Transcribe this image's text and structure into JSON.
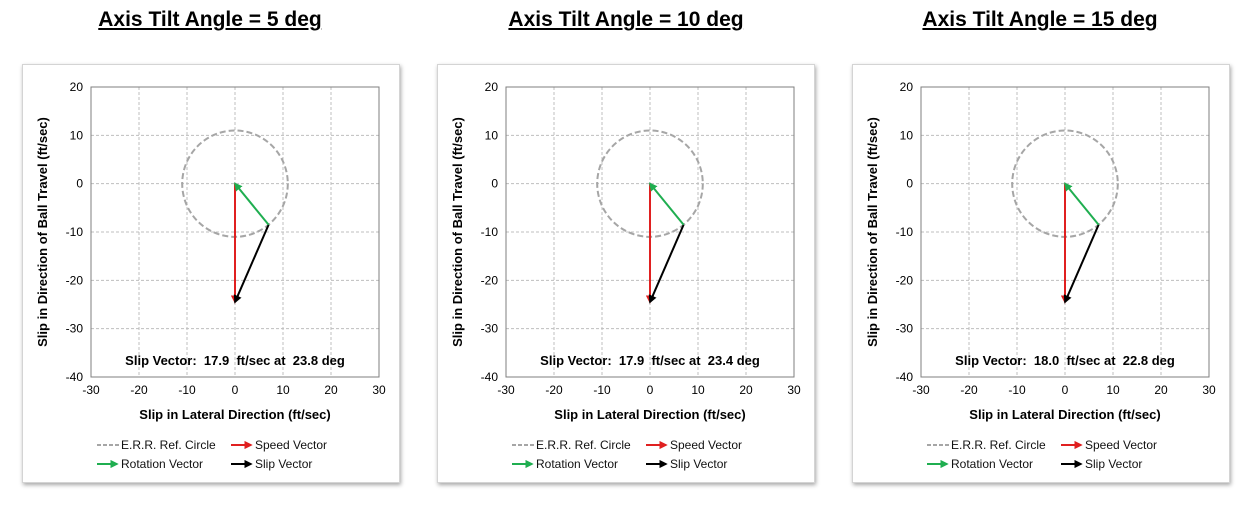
{
  "chart_data": [
    {
      "type": "vector",
      "title": "Axis Tilt Angle = 5 deg",
      "xlabel": "Slip in Lateral Direction (ft/sec)",
      "ylabel": "Slip in Direction of Ball Travel (ft/sec)",
      "xlim": [
        -30,
        30
      ],
      "ylim": [
        -40,
        20
      ],
      "xticks": [
        -30,
        -20,
        -10,
        0,
        10,
        20,
        30
      ],
      "yticks": [
        20,
        10,
        0,
        -10,
        -20,
        -30,
        -40
      ],
      "grid": true,
      "annotation": "Slip Vector:  17.9  ft/sec at  23.8 deg",
      "circle": {
        "center": [
          0,
          0
        ],
        "radius": 11
      },
      "vectors": {
        "speed": {
          "from": [
            0,
            0
          ],
          "to": [
            0,
            -24.5
          ]
        },
        "rotation": {
          "from": [
            7,
            -8.5
          ],
          "to": [
            0,
            0
          ]
        },
        "slip": {
          "from": [
            7,
            -8.5
          ],
          "to": [
            0,
            -24.5
          ]
        }
      },
      "legend": [
        "E.R.R. Ref. Circle",
        "Speed Vector",
        "Rotation Vector",
        "Slip Vector"
      ]
    },
    {
      "type": "vector",
      "title": "Axis Tilt Angle = 10 deg",
      "xlabel": "Slip in Lateral Direction (ft/sec)",
      "ylabel": "Slip in Direction of Ball Travel (ft/sec)",
      "xlim": [
        -30,
        30
      ],
      "ylim": [
        -40,
        20
      ],
      "xticks": [
        -30,
        -20,
        -10,
        0,
        10,
        20,
        30
      ],
      "yticks": [
        20,
        10,
        0,
        -10,
        -20,
        -30,
        -40
      ],
      "grid": true,
      "annotation": "Slip Vector:  17.9  ft/sec at  23.4 deg",
      "circle": {
        "center": [
          0,
          0
        ],
        "radius": 11
      },
      "vectors": {
        "speed": {
          "from": [
            0,
            0
          ],
          "to": [
            0,
            -24.5
          ]
        },
        "rotation": {
          "from": [
            7,
            -8.5
          ],
          "to": [
            0,
            0
          ]
        },
        "slip": {
          "from": [
            7,
            -8.5
          ],
          "to": [
            0,
            -24.5
          ]
        }
      },
      "legend": [
        "E.R.R. Ref. Circle",
        "Speed Vector",
        "Rotation Vector",
        "Slip Vector"
      ]
    },
    {
      "type": "vector",
      "title": "Axis Tilt Angle = 15 deg",
      "xlabel": "Slip in Lateral Direction (ft/sec)",
      "ylabel": "Slip in Direction of Ball Travel (ft/sec)",
      "xlim": [
        -30,
        30
      ],
      "ylim": [
        -40,
        20
      ],
      "xticks": [
        -30,
        -20,
        -10,
        0,
        10,
        20,
        30
      ],
      "yticks": [
        20,
        10,
        0,
        -10,
        -20,
        -30,
        -40
      ],
      "grid": true,
      "annotation": "Slip Vector:  18.0  ft/sec at  22.8 deg",
      "circle": {
        "center": [
          0,
          0
        ],
        "radius": 11
      },
      "vectors": {
        "speed": {
          "from": [
            0,
            0
          ],
          "to": [
            0,
            -24.5
          ]
        },
        "rotation": {
          "from": [
            7,
            -8.5
          ],
          "to": [
            0,
            0
          ]
        },
        "slip": {
          "from": [
            7,
            -8.5
          ],
          "to": [
            0,
            -24.5
          ]
        }
      },
      "legend": [
        "E.R.R. Ref. Circle",
        "Speed Vector",
        "Rotation Vector",
        "Slip Vector"
      ]
    }
  ],
  "colors": {
    "circle": "#a6a6a6",
    "speed": "#e02020",
    "rotation": "#1fae50",
    "slip": "#000000",
    "grid": "#bfbfbf"
  }
}
